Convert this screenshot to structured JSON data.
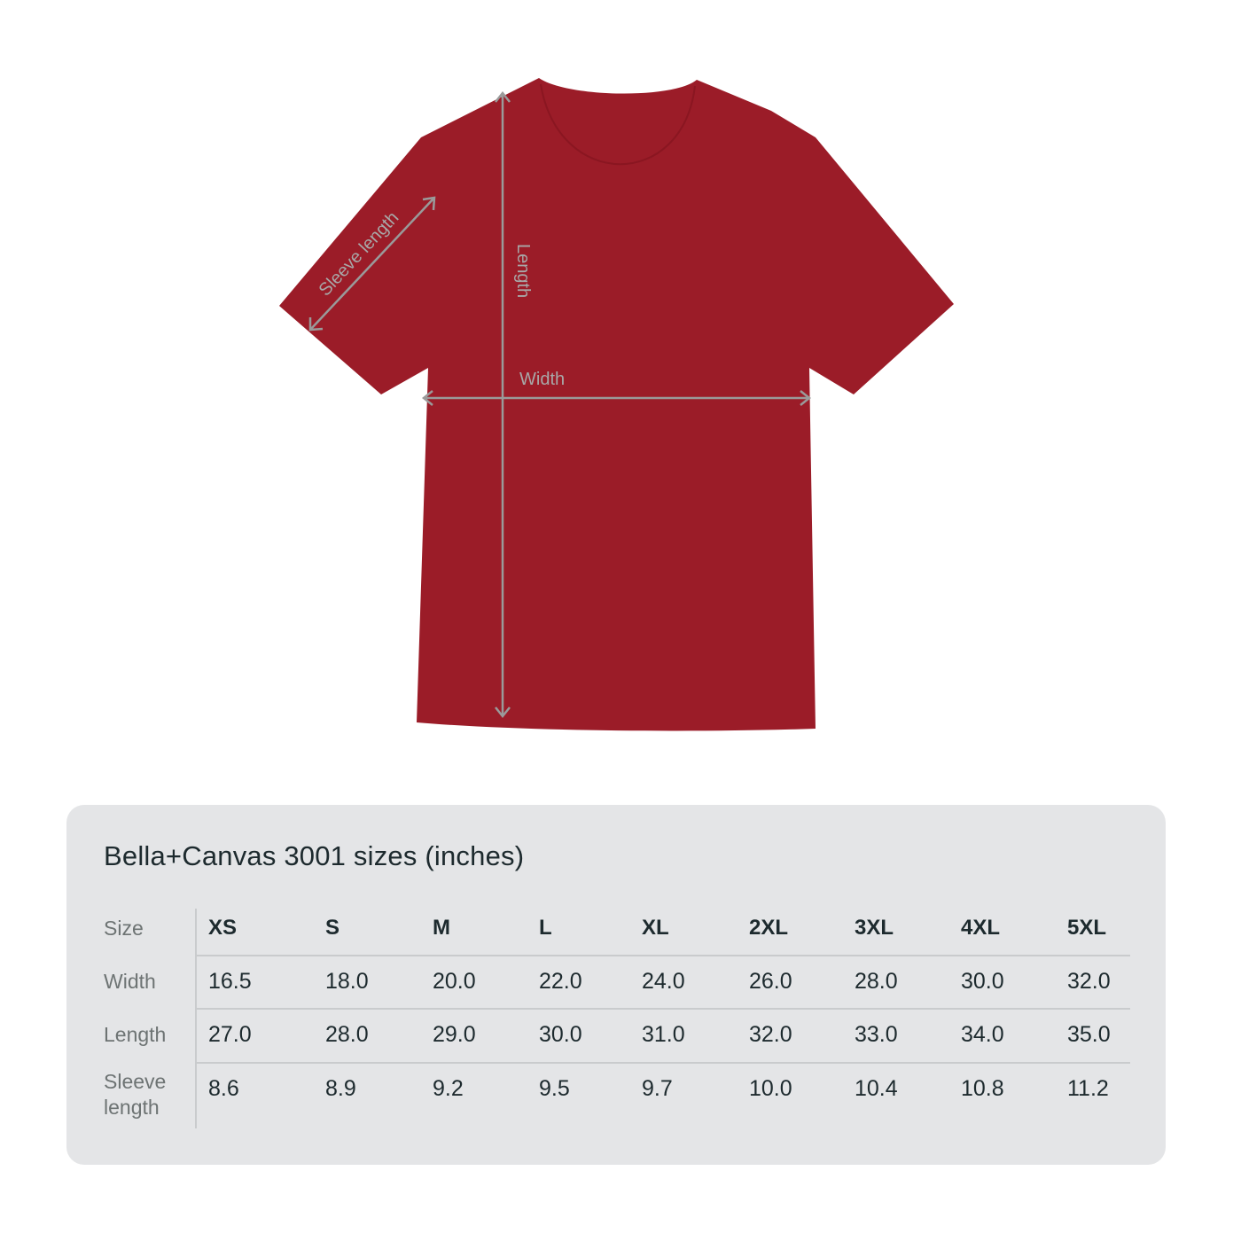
{
  "diagram": {
    "shirt_color": "#9b1c28",
    "measure_line_color": "#9a9a9a",
    "labels": {
      "length": "Length",
      "width": "Width",
      "sleeve": "Sleeve length"
    }
  },
  "size_table": {
    "title": "Bella+Canvas 3001 sizes (inches)",
    "row_headers": [
      "Size",
      "Width",
      "Length",
      "Sleeve length"
    ],
    "sizes": [
      "XS",
      "S",
      "M",
      "L",
      "XL",
      "2XL",
      "3XL",
      "4XL",
      "5XL"
    ],
    "rows": [
      {
        "label": "Width",
        "values": [
          "16.5",
          "18.0",
          "20.0",
          "22.0",
          "24.0",
          "26.0",
          "28.0",
          "30.0",
          "32.0"
        ]
      },
      {
        "label": "Length",
        "values": [
          "27.0",
          "28.0",
          "29.0",
          "30.0",
          "31.0",
          "32.0",
          "33.0",
          "34.0",
          "35.0"
        ]
      },
      {
        "label": "Sleeve length",
        "values": [
          "8.6",
          "8.9",
          "9.2",
          "9.5",
          "9.7",
          "10.0",
          "10.4",
          "10.8",
          "11.2"
        ]
      }
    ]
  }
}
